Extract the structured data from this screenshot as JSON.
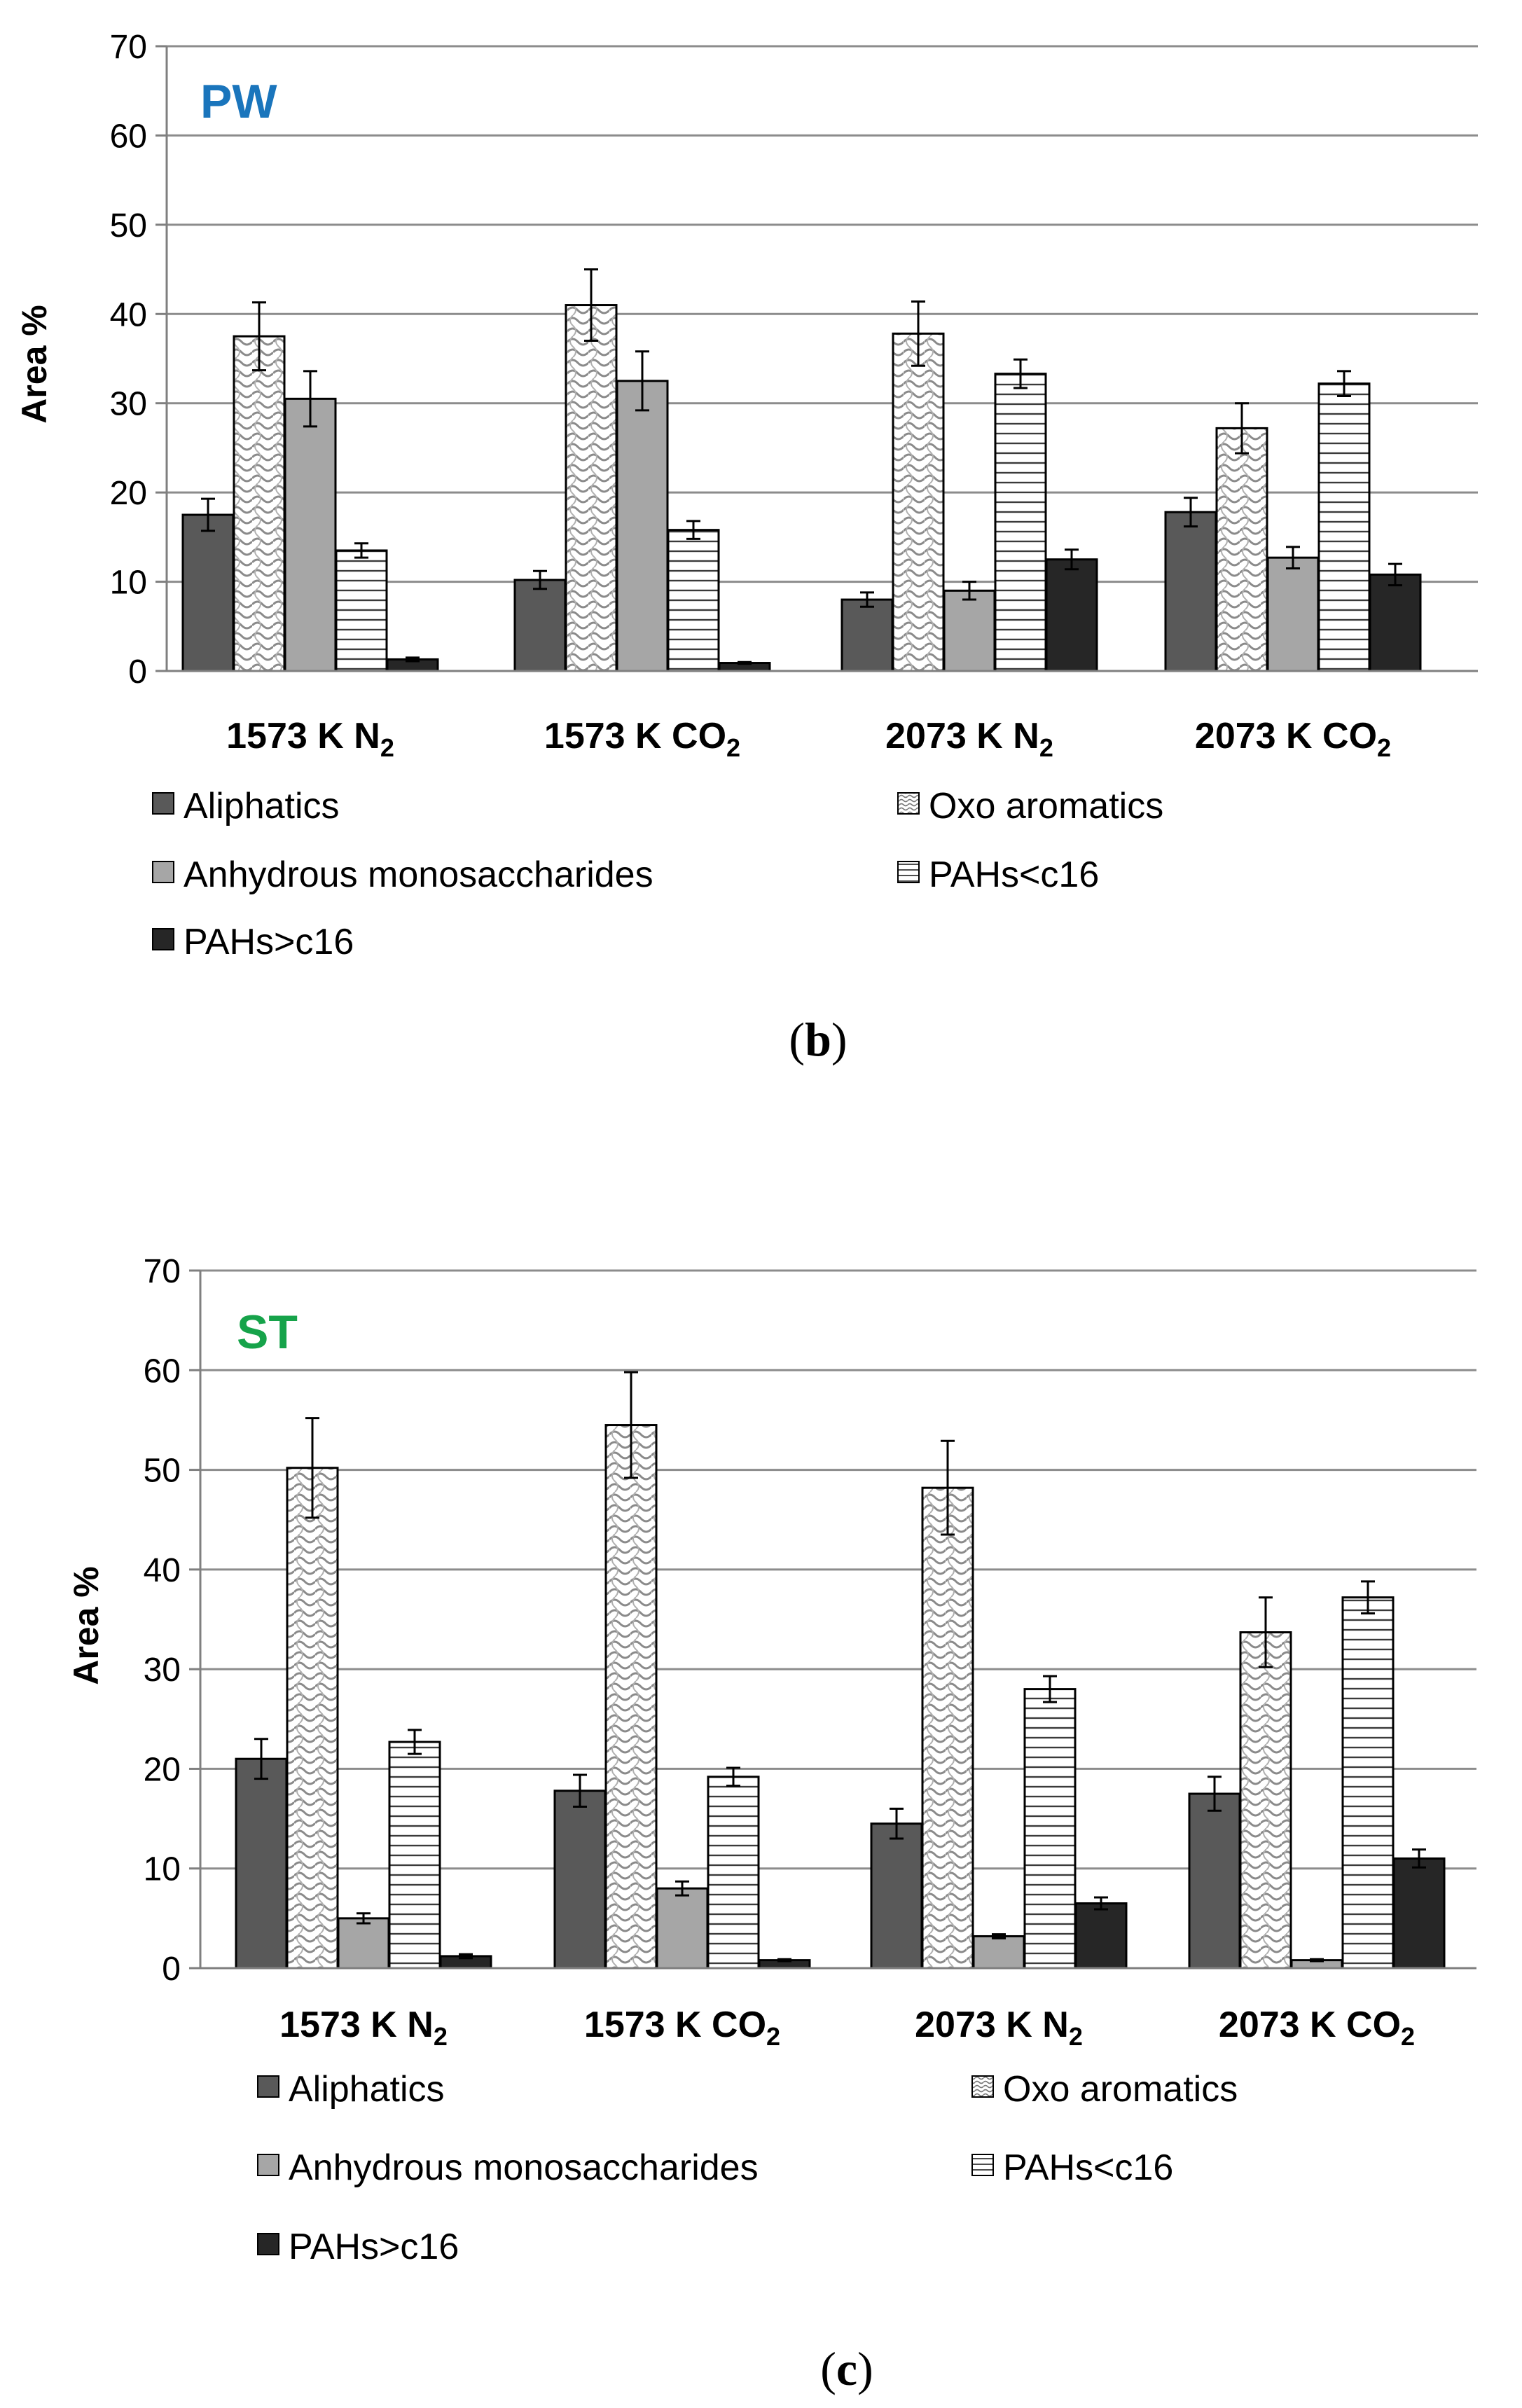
{
  "chart_data": [
    {
      "type": "bar",
      "panel_label": "PW",
      "panel_label_color": "#1a75bc",
      "caption": "b",
      "ylabel": "Area %",
      "ylim": [
        0,
        70
      ],
      "yticks": [
        0,
        10,
        20,
        30,
        40,
        50,
        60,
        70
      ],
      "categories": [
        {
          "main": "1573 K N",
          "sub": "2"
        },
        {
          "main": "1573 K CO",
          "sub": "2"
        },
        {
          "main": "2073 K N",
          "sub": "2"
        },
        {
          "main": "2073 K CO",
          "sub": "2"
        }
      ],
      "series": [
        {
          "name": "Aliphatics",
          "pattern": "dark",
          "values": [
            17.5,
            10.2,
            8.0,
            17.8
          ],
          "errors": [
            1.8,
            1.0,
            0.8,
            1.6
          ]
        },
        {
          "name": "Oxo aromatics",
          "pattern": "wave",
          "values": [
            37.5,
            41.0,
            37.8,
            27.2
          ],
          "errors": [
            3.8,
            4.0,
            3.6,
            2.8
          ]
        },
        {
          "name": "Anhydrous monosaccharides",
          "pattern": "gray",
          "values": [
            30.5,
            32.5,
            9.0,
            12.7
          ],
          "errors": [
            3.1,
            3.3,
            1.0,
            1.2
          ]
        },
        {
          "name": "PAHs<c16",
          "pattern": "hlines",
          "values": [
            13.5,
            15.8,
            33.3,
            32.2
          ],
          "errors": [
            0.8,
            1.0,
            1.6,
            1.4
          ]
        },
        {
          "name": "PAHs>c16",
          "pattern": "black",
          "values": [
            1.3,
            0.9,
            12.5,
            10.8
          ],
          "errors": [
            0.2,
            0.1,
            1.1,
            1.2
          ]
        }
      ]
    },
    {
      "type": "bar",
      "panel_label": "ST",
      "panel_label_color": "#16a34a",
      "caption": "c",
      "ylabel": "Area %",
      "ylim": [
        0,
        70
      ],
      "yticks": [
        0,
        10,
        20,
        30,
        40,
        50,
        60,
        70
      ],
      "categories": [
        {
          "main": "1573 K N",
          "sub": "2"
        },
        {
          "main": "1573 K CO",
          "sub": "2"
        },
        {
          "main": "2073 K N",
          "sub": "2"
        },
        {
          "main": "2073 K CO",
          "sub": "2"
        }
      ],
      "series": [
        {
          "name": "Aliphatics",
          "pattern": "dark",
          "values": [
            21.0,
            17.8,
            14.5,
            17.5
          ],
          "errors": [
            2.0,
            1.6,
            1.5,
            1.7
          ]
        },
        {
          "name": "Oxo aromatics",
          "pattern": "wave",
          "values": [
            50.2,
            54.5,
            48.2,
            33.7
          ],
          "errors": [
            5.0,
            5.3,
            4.7,
            3.5
          ]
        },
        {
          "name": "Anhydrous monosaccharides",
          "pattern": "gray",
          "values": [
            5.0,
            8.0,
            3.2,
            0.8
          ],
          "errors": [
            0.5,
            0.7,
            0.2,
            0.1
          ]
        },
        {
          "name": "PAHs<c16",
          "pattern": "hlines",
          "values": [
            22.7,
            19.2,
            28.0,
            37.2
          ],
          "errors": [
            1.2,
            0.9,
            1.3,
            1.6
          ]
        },
        {
          "name": "PAHs>c16",
          "pattern": "black",
          "values": [
            1.2,
            0.8,
            6.5,
            11.0
          ],
          "errors": [
            0.2,
            0.1,
            0.6,
            0.9
          ]
        }
      ]
    }
  ]
}
